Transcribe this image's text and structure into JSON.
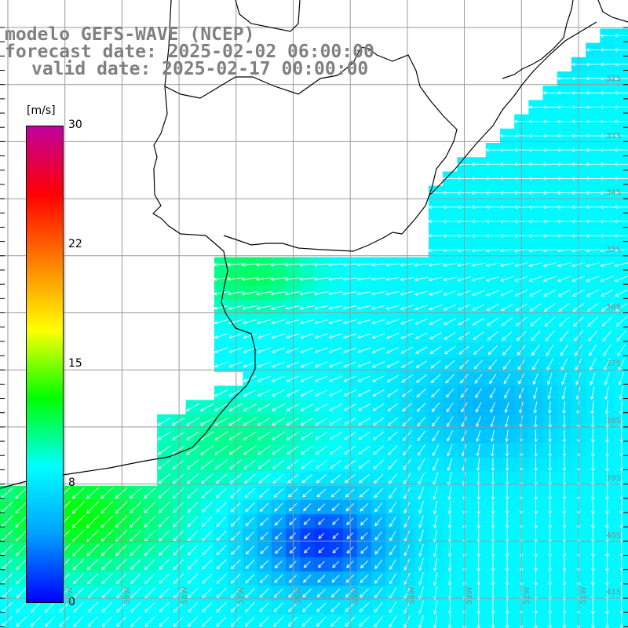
{
  "title": {
    "model": "modelo GEFS-WAVE (NCEP)",
    "forecast": "forecast date: 2025-02-02 06:00:00",
    "valid": "valid date: 2025-02-17 00:00:00"
  },
  "colorbar": {
    "unit": "[m/s]",
    "ticks": [
      "30",
      "22",
      "15",
      "8",
      "0"
    ],
    "tick_values": [
      30,
      22,
      15,
      8,
      0
    ],
    "range": [
      0,
      30
    ],
    "stops": [
      "#0000ff",
      "#00a0ff",
      "#00ffff",
      "#00ff00",
      "#ffff00",
      "#ff8000",
      "#ff0000",
      "#c000a0"
    ]
  },
  "lat_labels": [
    "32S",
    "33S",
    "34S",
    "35S",
    "36S",
    "37S",
    "38S",
    "39S",
    "40S",
    "41S"
  ],
  "lon_labels": [
    "60W",
    "59W",
    "58W",
    "57W",
    "56W",
    "55W",
    "54W",
    "53W",
    "52W",
    "51W"
  ],
  "colors": {
    "grid": "#9a9a9a",
    "coast": "#000000",
    "arrow": "#ffffff",
    "label": "#808080"
  }
}
